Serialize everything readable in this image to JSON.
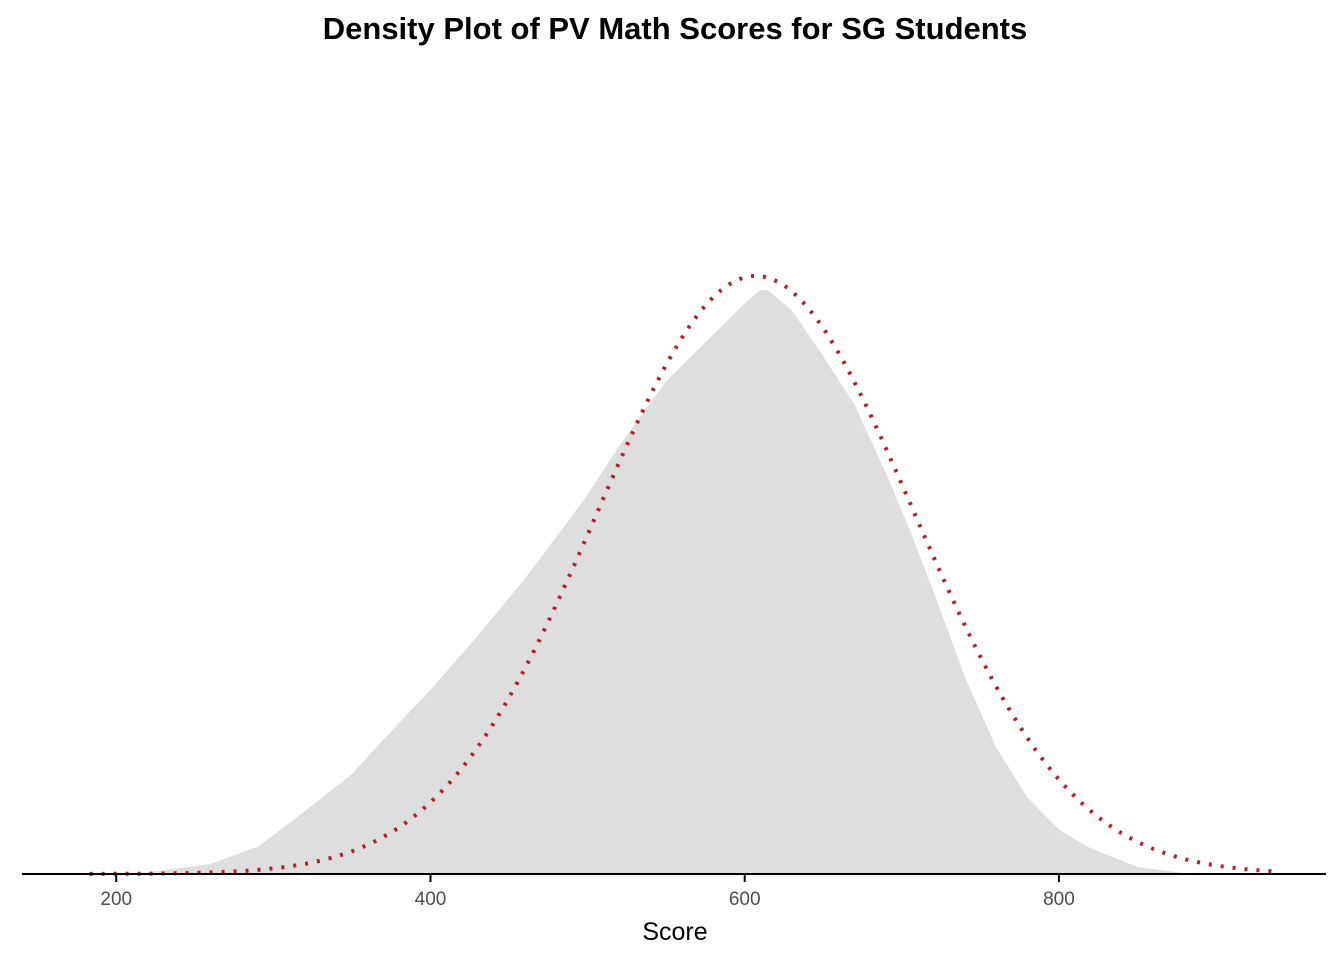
{
  "chart_data": {
    "type": "area",
    "title": "Density Plot of PV Math Scores for SG Students",
    "xlabel": "Score",
    "ylabel": "",
    "xlim": [
      140,
      970
    ],
    "ylim": [
      0,
      1.04
    ],
    "x_ticks": [
      200,
      400,
      600,
      800
    ],
    "y_axis_visible": false,
    "grid": false,
    "legend": "none",
    "series": [
      {
        "kind": "filled-density",
        "fill": "#dedede",
        "points": [
          [
            183,
            0.0
          ],
          [
            220,
            0.002
          ],
          [
            260,
            0.013
          ],
          [
            290,
            0.035
          ],
          [
            310,
            0.065
          ],
          [
            330,
            0.096
          ],
          [
            350,
            0.128
          ],
          [
            370,
            0.172
          ],
          [
            400,
            0.236
          ],
          [
            430,
            0.305
          ],
          [
            460,
            0.378
          ],
          [
            490,
            0.458
          ],
          [
            500,
            0.486
          ],
          [
            520,
            0.548
          ],
          [
            550,
            0.631
          ],
          [
            580,
            0.691
          ],
          [
            600,
            0.731
          ],
          [
            610,
            0.748
          ],
          [
            615,
            0.747
          ],
          [
            630,
            0.722
          ],
          [
            650,
            0.663
          ],
          [
            670,
            0.601
          ],
          [
            690,
            0.513
          ],
          [
            705,
            0.441
          ],
          [
            720,
            0.363
          ],
          [
            740,
            0.253
          ],
          [
            760,
            0.162
          ],
          [
            780,
            0.098
          ],
          [
            800,
            0.057
          ],
          [
            820,
            0.033
          ],
          [
            850,
            0.009
          ],
          [
            880,
            0.001
          ],
          [
            942,
            0.0
          ]
        ]
      },
      {
        "kind": "normal-curve",
        "color": "#b22222",
        "line": "dotted",
        "mean": 607,
        "sd": 100.5,
        "peak": 0.766,
        "x_range": [
          183,
          942
        ]
      }
    ]
  }
}
